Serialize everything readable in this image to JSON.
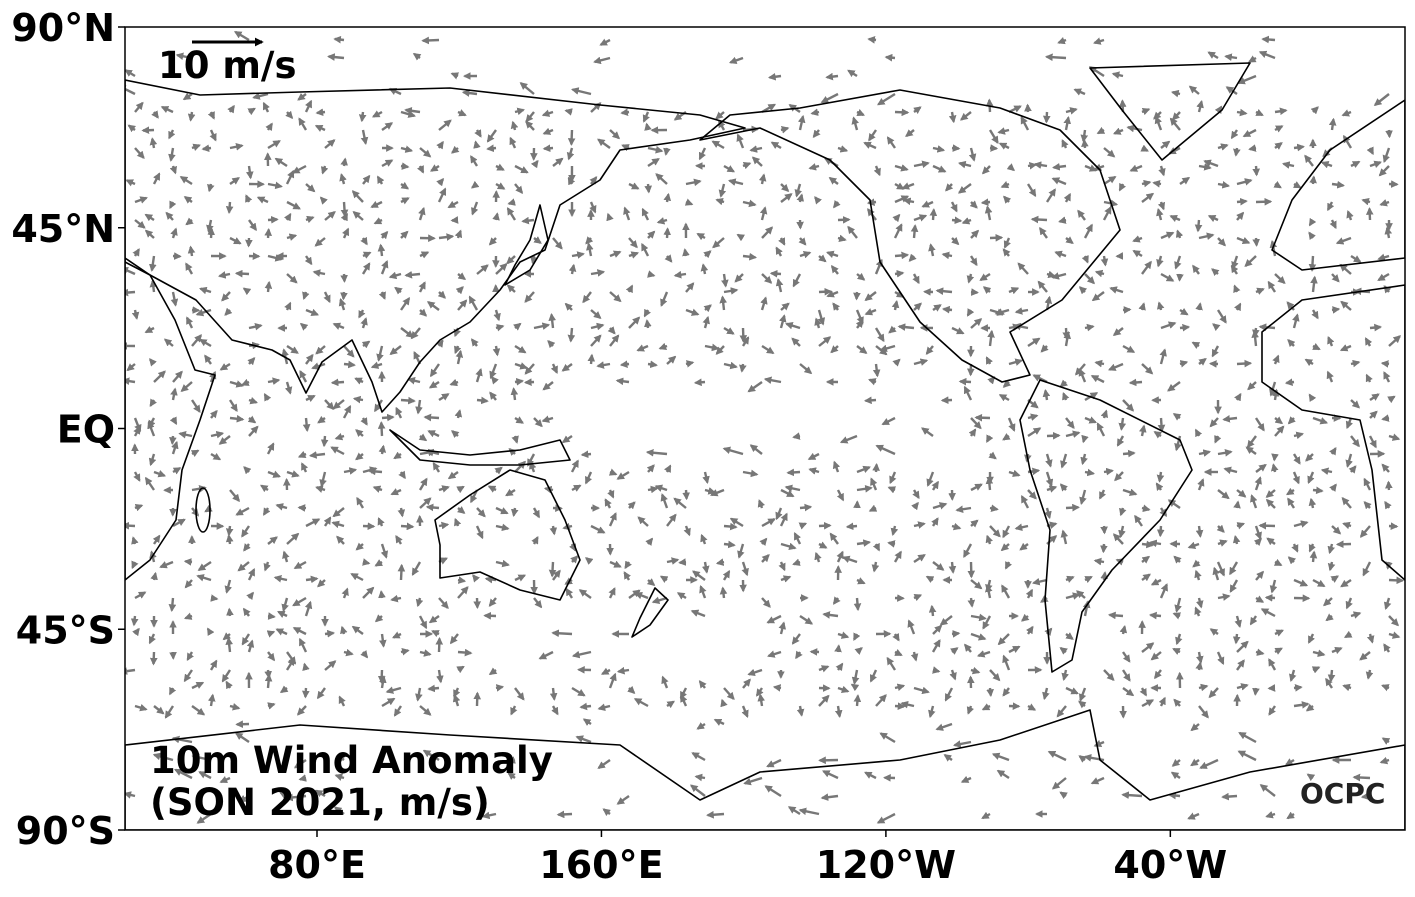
{
  "map": {
    "title_lines": [
      "10m Wind Anomaly",
      "(SON 2021, m/s)"
    ],
    "reference_vector_label": "10 m/s",
    "credit": "OCPC",
    "lat_ticks": [
      {
        "value": 90,
        "label": "90°N"
      },
      {
        "value": 45,
        "label": "45°N"
      },
      {
        "value": 0,
        "label": "EQ"
      },
      {
        "value": -45,
        "label": "45°S"
      },
      {
        "value": -90,
        "label": "90°S"
      }
    ],
    "lon_ticks": [
      {
        "value": 80,
        "label": "80°E"
      },
      {
        "value": 160,
        "label": "160°E"
      },
      {
        "value": 240,
        "label": "120°W"
      },
      {
        "value": 320,
        "label": "40°W"
      }
    ]
  }
}
